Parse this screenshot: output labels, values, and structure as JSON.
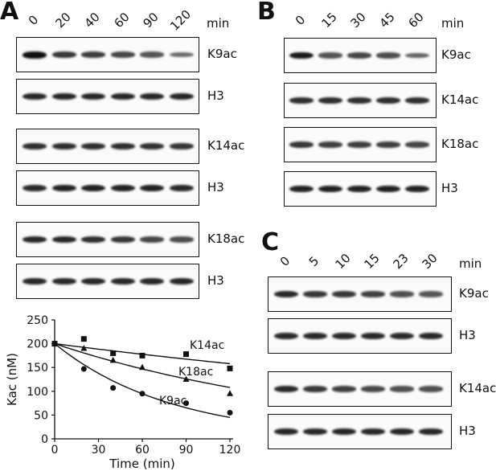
{
  "panels": {
    "A": {
      "letter": "A",
      "unit": "min",
      "times": [
        "0",
        "20",
        "40",
        "60",
        "90",
        "120"
      ],
      "blots": [
        {
          "label": "K9ac",
          "intensity": [
            1.0,
            0.75,
            0.7,
            0.65,
            0.55,
            0.4
          ]
        },
        {
          "label": "H3",
          "intensity": [
            0.85,
            0.85,
            0.85,
            0.85,
            0.85,
            0.85
          ]
        },
        {
          "label": "K14ac",
          "intensity": [
            0.8,
            0.8,
            0.8,
            0.8,
            0.78,
            0.75
          ]
        },
        {
          "label": "H3",
          "intensity": [
            0.85,
            0.9,
            0.9,
            0.9,
            0.9,
            0.85
          ]
        },
        {
          "label": "K18ac",
          "intensity": [
            0.85,
            0.85,
            0.8,
            0.75,
            0.65,
            0.6
          ]
        },
        {
          "label": "H3",
          "intensity": [
            0.85,
            0.85,
            0.85,
            0.85,
            0.85,
            0.85
          ]
        }
      ]
    },
    "B": {
      "letter": "B",
      "unit": "min",
      "times": [
        "0",
        "15",
        "30",
        "45",
        "60"
      ],
      "blots": [
        {
          "label": "K9ac",
          "intensity": [
            0.95,
            0.55,
            0.65,
            0.6,
            0.45
          ]
        },
        {
          "label": "K14ac",
          "intensity": [
            0.8,
            0.8,
            0.8,
            0.8,
            0.8
          ]
        },
        {
          "label": "K18ac",
          "intensity": [
            0.75,
            0.7,
            0.7,
            0.7,
            0.65
          ]
        },
        {
          "label": "H3",
          "intensity": [
            0.9,
            0.9,
            0.9,
            0.9,
            0.9
          ]
        }
      ]
    },
    "C": {
      "letter": "C",
      "unit": "min",
      "times": [
        "0",
        "5",
        "10",
        "15",
        "23",
        "30"
      ],
      "blots": [
        {
          "label": "K9ac",
          "intensity": [
            0.85,
            0.75,
            0.75,
            0.7,
            0.6,
            0.55
          ]
        },
        {
          "label": "H3",
          "intensity": [
            0.85,
            0.85,
            0.85,
            0.85,
            0.85,
            0.85
          ]
        },
        {
          "label": "K14ac",
          "intensity": [
            0.85,
            0.75,
            0.7,
            0.65,
            0.6,
            0.6
          ]
        },
        {
          "label": "H3",
          "intensity": [
            0.85,
            0.85,
            0.85,
            0.85,
            0.85,
            0.85
          ]
        }
      ]
    }
  },
  "chart_data": {
    "type": "scatter",
    "xlabel": "Time (min)",
    "ylabel": "Kac (nM)",
    "xlim": [
      0,
      120
    ],
    "ylim": [
      0,
      250
    ],
    "xticks": [
      "0",
      "30",
      "60",
      "90",
      "120"
    ],
    "yticks": [
      "0",
      "50",
      "100",
      "150",
      "200",
      "250"
    ],
    "series": [
      {
        "name": "K14ac",
        "marker": "square",
        "x": [
          0,
          20,
          40,
          60,
          90,
          120
        ],
        "y": [
          200,
          210,
          180,
          175,
          178,
          148
        ],
        "fit_end": 158
      },
      {
        "name": "K18ac",
        "marker": "triangle",
        "x": [
          0,
          20,
          40,
          60,
          90,
          120
        ],
        "y": [
          200,
          190,
          165,
          150,
          125,
          95
        ],
        "fit_end": 108
      },
      {
        "name": "K9ac",
        "marker": "circle",
        "x": [
          0,
          20,
          40,
          60,
          90,
          120
        ],
        "y": [
          200,
          147,
          107,
          95,
          75,
          55
        ],
        "fit_end": 45
      }
    ]
  }
}
